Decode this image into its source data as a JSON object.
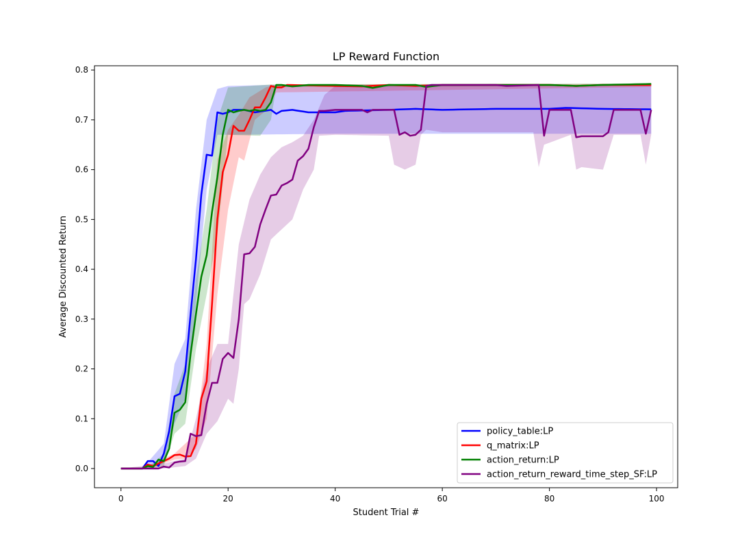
{
  "chart_data": {
    "type": "line",
    "title": "LP Reward Function",
    "xlabel": "Student Trial #",
    "ylabel": "Average Discounted Return",
    "xlim": [
      -4.95,
      103.95
    ],
    "ylim": [
      -0.0385,
      0.8085
    ],
    "xticks": [
      0,
      20,
      40,
      60,
      80,
      100
    ],
    "yticks": [
      0.0,
      0.1,
      0.2,
      0.3,
      0.4,
      0.5,
      0.6,
      0.7,
      0.8
    ],
    "grid": false,
    "legend_position": "lower-right",
    "series": [
      {
        "name": "policy_table:LP",
        "color": "#0000ff",
        "points": [
          [
            0,
            0
          ],
          [
            4,
            0
          ],
          [
            5,
            0.015
          ],
          [
            6,
            0.015
          ],
          [
            7,
            0.005
          ],
          [
            8,
            0.03
          ],
          [
            9,
            0.075
          ],
          [
            10,
            0.145
          ],
          [
            11,
            0.15
          ],
          [
            12,
            0.195
          ],
          [
            13,
            0.31
          ],
          [
            14,
            0.42
          ],
          [
            15,
            0.55
          ],
          [
            16,
            0.63
          ],
          [
            17,
            0.628
          ],
          [
            18,
            0.715
          ],
          [
            19,
            0.712
          ],
          [
            20,
            0.715
          ],
          [
            21,
            0.72
          ],
          [
            23,
            0.72
          ],
          [
            25,
            0.715
          ],
          [
            28,
            0.72
          ],
          [
            29,
            0.712
          ],
          [
            30,
            0.718
          ],
          [
            32,
            0.72
          ],
          [
            35,
            0.715
          ],
          [
            40,
            0.715
          ],
          [
            42,
            0.718
          ],
          [
            50,
            0.72
          ],
          [
            55,
            0.722
          ],
          [
            60,
            0.72
          ],
          [
            70,
            0.722
          ],
          [
            80,
            0.722
          ],
          [
            83,
            0.724
          ],
          [
            90,
            0.722
          ],
          [
            99,
            0.721
          ]
        ],
        "band_upper": [
          [
            0,
            0
          ],
          [
            4,
            0
          ],
          [
            6,
            0.025
          ],
          [
            8,
            0.05
          ],
          [
            10,
            0.21
          ],
          [
            12,
            0.26
          ],
          [
            14,
            0.52
          ],
          [
            16,
            0.7
          ],
          [
            18,
            0.762
          ],
          [
            20,
            0.768
          ],
          [
            28,
            0.77
          ],
          [
            40,
            0.77
          ],
          [
            99,
            0.77
          ]
        ],
        "band_lower": [
          [
            0,
            0
          ],
          [
            4,
            0
          ],
          [
            6,
            0.005
          ],
          [
            8,
            0.01
          ],
          [
            10,
            0.09
          ],
          [
            12,
            0.14
          ],
          [
            14,
            0.33
          ],
          [
            16,
            0.56
          ],
          [
            18,
            0.67
          ],
          [
            22,
            0.67
          ],
          [
            40,
            0.672
          ],
          [
            60,
            0.672
          ],
          [
            99,
            0.672
          ]
        ]
      },
      {
        "name": "q_matrix:LP",
        "color": "#ff0000",
        "points": [
          [
            0,
            0
          ],
          [
            4,
            0
          ],
          [
            5,
            0.008
          ],
          [
            6,
            0.005
          ],
          [
            7,
            0.01
          ],
          [
            8,
            0.015
          ],
          [
            9,
            0.02
          ],
          [
            10,
            0.027
          ],
          [
            11,
            0.028
          ],
          [
            12,
            0.024
          ],
          [
            13,
            0.025
          ],
          [
            14,
            0.05
          ],
          [
            15,
            0.14
          ],
          [
            16,
            0.175
          ],
          [
            17,
            0.33
          ],
          [
            18,
            0.5
          ],
          [
            19,
            0.595
          ],
          [
            20,
            0.63
          ],
          [
            21,
            0.688
          ],
          [
            22,
            0.678
          ],
          [
            23,
            0.678
          ],
          [
            24,
            0.7
          ],
          [
            25,
            0.725
          ],
          [
            26,
            0.725
          ],
          [
            27,
            0.745
          ],
          [
            28,
            0.768
          ],
          [
            29,
            0.765
          ],
          [
            30,
            0.765
          ],
          [
            31,
            0.77
          ],
          [
            40,
            0.768
          ],
          [
            45,
            0.767
          ],
          [
            50,
            0.77
          ],
          [
            55,
            0.768
          ],
          [
            60,
            0.77
          ],
          [
            80,
            0.77
          ],
          [
            85,
            0.768
          ],
          [
            90,
            0.77
          ],
          [
            99,
            0.77
          ]
        ],
        "band_upper": [
          [
            0,
            0
          ],
          [
            4,
            0
          ],
          [
            6,
            0.01
          ],
          [
            10,
            0.03
          ],
          [
            14,
            0.07
          ],
          [
            16,
            0.25
          ],
          [
            18,
            0.62
          ],
          [
            20,
            0.68
          ],
          [
            22,
            0.71
          ],
          [
            24,
            0.745
          ],
          [
            27,
            0.765
          ],
          [
            29,
            0.771
          ],
          [
            99,
            0.772
          ]
        ],
        "band_lower": [
          [
            0,
            0
          ],
          [
            4,
            0
          ],
          [
            6,
            0.003
          ],
          [
            10,
            0.018
          ],
          [
            12,
            0.02
          ],
          [
            14,
            0.04
          ],
          [
            16,
            0.1
          ],
          [
            18,
            0.35
          ],
          [
            20,
            0.52
          ],
          [
            22,
            0.625
          ],
          [
            23,
            0.618
          ],
          [
            25,
            0.7
          ],
          [
            27,
            0.718
          ],
          [
            29,
            0.755
          ],
          [
            99,
            0.766
          ]
        ]
      },
      {
        "name": "action_return:LP",
        "color": "#008000",
        "points": [
          [
            0,
            0
          ],
          [
            4,
            0
          ],
          [
            5,
            0.005
          ],
          [
            6,
            0.003
          ],
          [
            7,
            0.018
          ],
          [
            8,
            0.015
          ],
          [
            9,
            0.04
          ],
          [
            10,
            0.112
          ],
          [
            11,
            0.118
          ],
          [
            12,
            0.133
          ],
          [
            13,
            0.23
          ],
          [
            14,
            0.31
          ],
          [
            15,
            0.385
          ],
          [
            16,
            0.428
          ],
          [
            17,
            0.515
          ],
          [
            18,
            0.585
          ],
          [
            19,
            0.67
          ],
          [
            20,
            0.72
          ],
          [
            21,
            0.715
          ],
          [
            22,
            0.718
          ],
          [
            23,
            0.72
          ],
          [
            24,
            0.718
          ],
          [
            25,
            0.72
          ],
          [
            26,
            0.718
          ],
          [
            27,
            0.72
          ],
          [
            28,
            0.735
          ],
          [
            29,
            0.77
          ],
          [
            30,
            0.77
          ],
          [
            32,
            0.767
          ],
          [
            35,
            0.77
          ],
          [
            40,
            0.77
          ],
          [
            45,
            0.768
          ],
          [
            47,
            0.764
          ],
          [
            50,
            0.77
          ],
          [
            55,
            0.77
          ],
          [
            57,
            0.766
          ],
          [
            60,
            0.77
          ],
          [
            80,
            0.77
          ],
          [
            85,
            0.768
          ],
          [
            90,
            0.77
          ],
          [
            99,
            0.772
          ]
        ],
        "band_upper": [
          [
            0,
            0
          ],
          [
            4,
            0
          ],
          [
            6,
            0.01
          ],
          [
            8,
            0.03
          ],
          [
            10,
            0.15
          ],
          [
            12,
            0.21
          ],
          [
            14,
            0.38
          ],
          [
            16,
            0.52
          ],
          [
            18,
            0.7
          ],
          [
            20,
            0.765
          ],
          [
            24,
            0.768
          ],
          [
            28,
            0.771
          ],
          [
            99,
            0.773
          ]
        ],
        "band_lower": [
          [
            0,
            0
          ],
          [
            4,
            0
          ],
          [
            6,
            0.001
          ],
          [
            8,
            0.005
          ],
          [
            10,
            0.07
          ],
          [
            12,
            0.09
          ],
          [
            14,
            0.24
          ],
          [
            16,
            0.35
          ],
          [
            18,
            0.47
          ],
          [
            20,
            0.67
          ],
          [
            26,
            0.668
          ],
          [
            28,
            0.7
          ],
          [
            29,
            0.766
          ],
          [
            99,
            0.768
          ]
        ]
      },
      {
        "name": "action_return_reward_time_step_SF:LP",
        "color": "#800080",
        "points": [
          [
            0,
            0
          ],
          [
            7,
            0
          ],
          [
            8,
            0.004
          ],
          [
            9,
            0.002
          ],
          [
            10,
            0.012
          ],
          [
            11,
            0.014
          ],
          [
            12,
            0.015
          ],
          [
            13,
            0.07
          ],
          [
            14,
            0.065
          ],
          [
            15,
            0.067
          ],
          [
            16,
            0.13
          ],
          [
            17,
            0.172
          ],
          [
            18,
            0.172
          ],
          [
            19,
            0.22
          ],
          [
            20,
            0.232
          ],
          [
            21,
            0.222
          ],
          [
            22,
            0.3
          ],
          [
            23,
            0.43
          ],
          [
            24,
            0.432
          ],
          [
            25,
            0.445
          ],
          [
            26,
            0.49
          ],
          [
            27,
            0.52
          ],
          [
            28,
            0.548
          ],
          [
            29,
            0.55
          ],
          [
            30,
            0.568
          ],
          [
            31,
            0.573
          ],
          [
            32,
            0.58
          ],
          [
            33,
            0.618
          ],
          [
            34,
            0.627
          ],
          [
            35,
            0.642
          ],
          [
            36,
            0.685
          ],
          [
            37,
            0.718
          ],
          [
            38,
            0.718
          ],
          [
            40,
            0.72
          ],
          [
            45,
            0.72
          ],
          [
            46,
            0.715
          ],
          [
            47,
            0.72
          ],
          [
            51,
            0.72
          ],
          [
            52,
            0.67
          ],
          [
            53,
            0.675
          ],
          [
            54,
            0.668
          ],
          [
            55,
            0.67
          ],
          [
            56,
            0.68
          ],
          [
            57,
            0.768
          ],
          [
            58,
            0.77
          ],
          [
            60,
            0.77
          ],
          [
            70,
            0.77
          ],
          [
            72,
            0.768
          ],
          [
            78,
            0.77
          ],
          [
            79,
            0.668
          ],
          [
            80,
            0.72
          ],
          [
            84,
            0.72
          ],
          [
            85,
            0.665
          ],
          [
            86,
            0.667
          ],
          [
            90,
            0.667
          ],
          [
            91,
            0.675
          ],
          [
            92,
            0.72
          ],
          [
            97,
            0.72
          ],
          [
            98,
            0.672
          ],
          [
            99,
            0.72
          ]
        ],
        "band_upper": [
          [
            0,
            0
          ],
          [
            8,
            0.01
          ],
          [
            12,
            0.02
          ],
          [
            14,
            0.1
          ],
          [
            16,
            0.2
          ],
          [
            18,
            0.25
          ],
          [
            20,
            0.25
          ],
          [
            22,
            0.45
          ],
          [
            24,
            0.54
          ],
          [
            26,
            0.59
          ],
          [
            28,
            0.625
          ],
          [
            30,
            0.645
          ],
          [
            32,
            0.655
          ],
          [
            34,
            0.668
          ],
          [
            36,
            0.7
          ],
          [
            38,
            0.75
          ],
          [
            40,
            0.768
          ],
          [
            99,
            0.77
          ]
        ],
        "band_lower": [
          [
            0,
            0
          ],
          [
            8,
            0
          ],
          [
            12,
            0.005
          ],
          [
            14,
            0.02
          ],
          [
            16,
            0.07
          ],
          [
            18,
            0.095
          ],
          [
            20,
            0.14
          ],
          [
            21,
            0.13
          ],
          [
            22,
            0.2
          ],
          [
            23,
            0.33
          ],
          [
            24,
            0.34
          ],
          [
            26,
            0.39
          ],
          [
            28,
            0.46
          ],
          [
            30,
            0.48
          ],
          [
            32,
            0.5
          ],
          [
            34,
            0.56
          ],
          [
            36,
            0.6
          ],
          [
            37,
            0.668
          ],
          [
            40,
            0.67
          ],
          [
            50,
            0.668
          ],
          [
            51,
            0.61
          ],
          [
            53,
            0.6
          ],
          [
            55,
            0.61
          ],
          [
            56,
            0.67
          ],
          [
            57,
            0.68
          ],
          [
            60,
            0.675
          ],
          [
            77,
            0.675
          ],
          [
            78,
            0.605
          ],
          [
            79,
            0.65
          ],
          [
            84,
            0.67
          ],
          [
            85,
            0.6
          ],
          [
            86,
            0.605
          ],
          [
            90,
            0.6
          ],
          [
            92,
            0.67
          ],
          [
            97,
            0.67
          ],
          [
            98,
            0.61
          ],
          [
            99,
            0.67
          ]
        ]
      }
    ]
  }
}
